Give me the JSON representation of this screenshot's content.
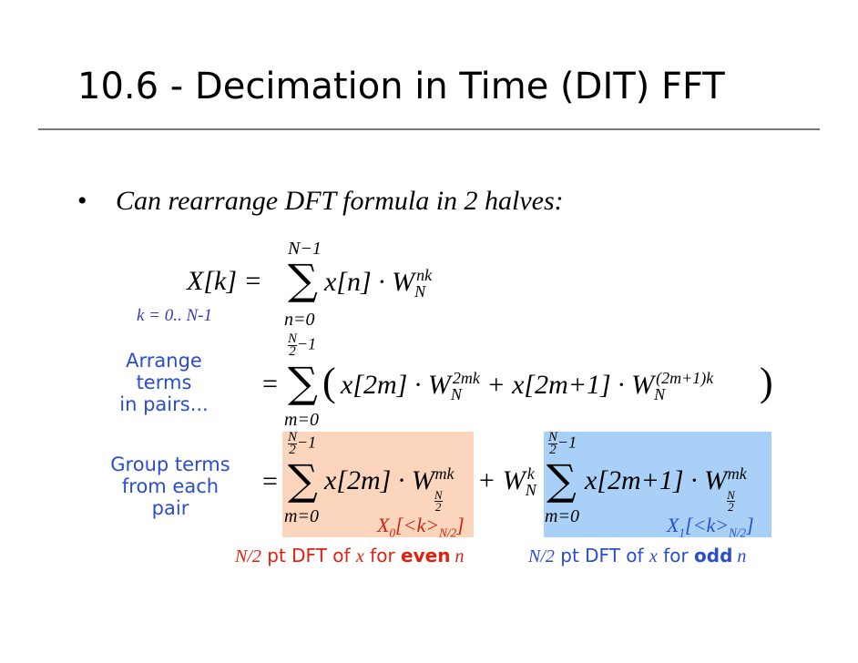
{
  "title": "10.6 - Decimation in Time (DIT) FFT",
  "bullet": "Can rearrange DFT formula in 2 halves:",
  "eq1": {
    "lhs": "X[k] =",
    "upper": "N−1",
    "sigma": "∑",
    "lower": "n=0",
    "term": "x[n] · W",
    "w_sub": "N",
    "w_sup": "nk",
    "range": "k = 0.. N-1"
  },
  "eq2": {
    "label": [
      "Arrange",
      "terms",
      "in pairs..."
    ],
    "eq": "=",
    "upper_num": "N",
    "upper_den": "2",
    "upper_rest": "−1",
    "sigma": "∑",
    "lower": "m=0",
    "open": "(",
    "term1": "x[2m] · W",
    "w1_sub": "N",
    "w1_sup": "2mk",
    "term2": "+ x[2m+1] · W",
    "w2_sub": "N",
    "w2_sup": "(2m+1)k",
    "close": ")"
  },
  "eq3": {
    "label": [
      "Group terms",
      "from each",
      "pair"
    ],
    "eq": "=",
    "upper_num": "N",
    "upper_den": "2",
    "upper_rest": "−1",
    "sigma": "∑",
    "lower": "m=0",
    "term1": "x[2m] · W",
    "w1_sub_num": "N",
    "w1_sub_den": "2",
    "w1_sup": "mk",
    "mid": "+ W",
    "mid_sub": "N",
    "mid_sup": "k",
    "upper2_num": "N",
    "upper2_den": "2",
    "upper2_rest": "−1",
    "sigma2": "∑",
    "lower2": "m=0",
    "term2": "x[2m+1] · W",
    "w2_sub_num": "N",
    "w2_sub_den": "2",
    "w2_sup": "mk",
    "x0": {
      "main": "X",
      "sub": "0",
      "open": "[<k>",
      "sub2": "N/2",
      "close": "]"
    },
    "x1": {
      "main": "X",
      "sub": "1",
      "open": "[<k>",
      "sub2": "N/2",
      "close": "]"
    }
  },
  "caption_even": [
    "N/2",
    " pt DFT of ",
    "x",
    " for ",
    "even",
    " n"
  ],
  "caption_odd": [
    "N/2",
    " pt DFT of ",
    "x",
    " for ",
    "odd",
    " n"
  ]
}
